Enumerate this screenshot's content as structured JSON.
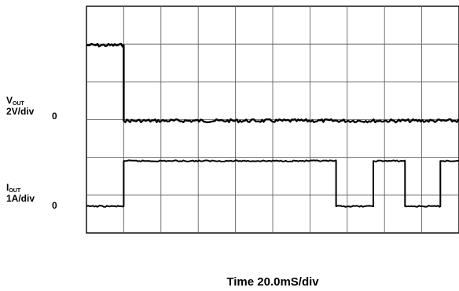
{
  "chart_data": {
    "type": "line",
    "x_axis": {
      "label": "Time 20.0mS/div",
      "unit": "mS",
      "per_div": 20.0,
      "divisions": 10,
      "range": [
        0,
        200
      ]
    },
    "grid": true,
    "channels": [
      {
        "name": "V",
        "name_sub": "OUT",
        "scale_label": "2V/div",
        "zero_label": "0",
        "unit": "V",
        "volts_per_div": 2,
        "points": [
          [
            0,
            4.0
          ],
          [
            20,
            4.0
          ],
          [
            20,
            0.0
          ],
          [
            200,
            0.0
          ]
        ]
      },
      {
        "name": "I",
        "name_sub": "OUT",
        "scale_label": "1A/div",
        "zero_label": "0",
        "unit": "A",
        "amps_per_div": 1,
        "points": [
          [
            0,
            0.0
          ],
          [
            20,
            0.0
          ],
          [
            20,
            1.2
          ],
          [
            134,
            1.2
          ],
          [
            134,
            0.0
          ],
          [
            154,
            0.0
          ],
          [
            154,
            1.2
          ],
          [
            171,
            1.2
          ],
          [
            171,
            0.0
          ],
          [
            190,
            0.0
          ],
          [
            190,
            1.2
          ],
          [
            200,
            1.2
          ]
        ]
      }
    ]
  }
}
